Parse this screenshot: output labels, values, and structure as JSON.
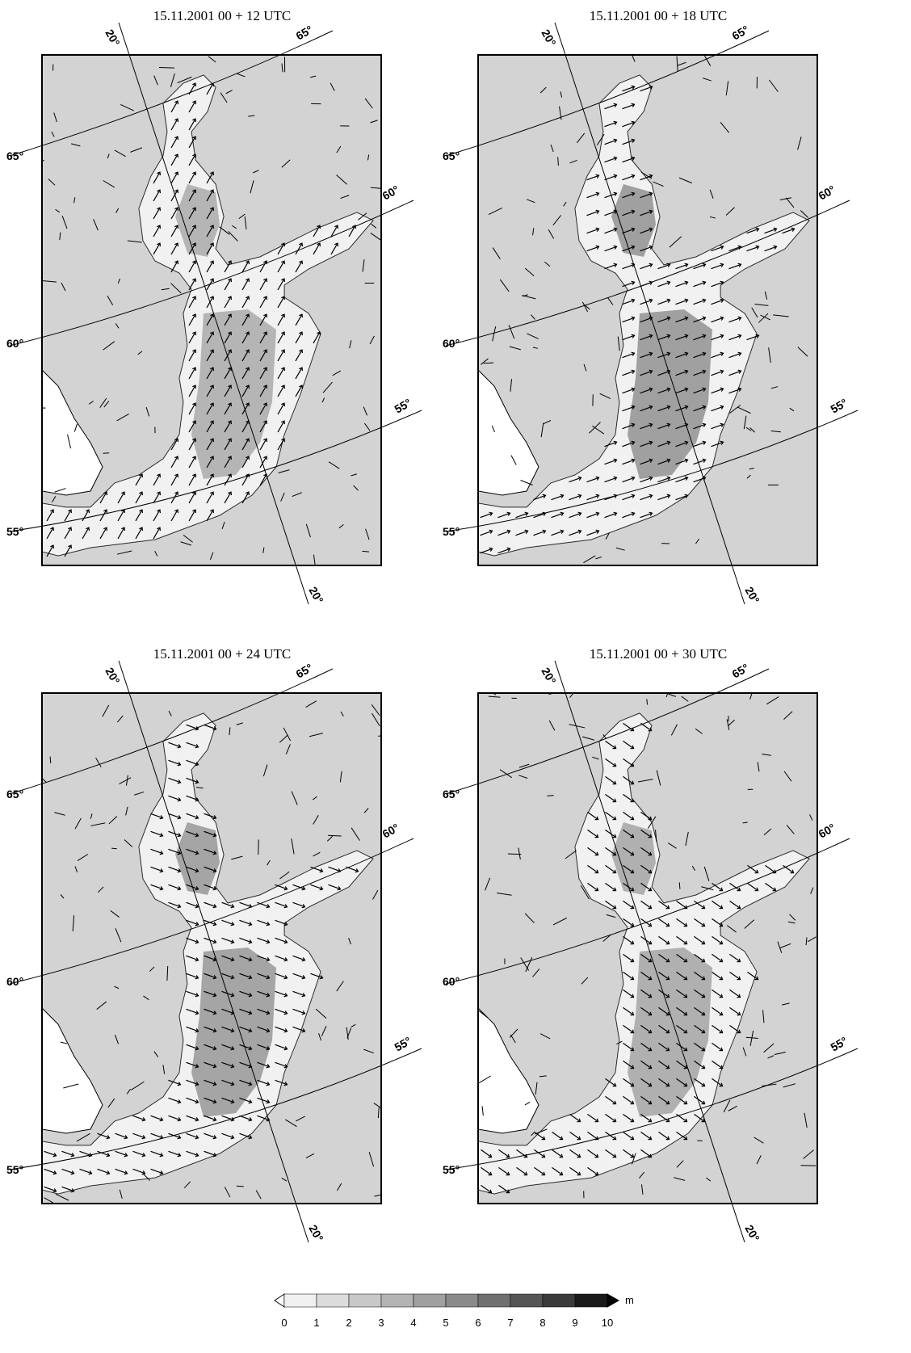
{
  "panels": [
    {
      "title": "15.11.2001 00 + 12 UTC",
      "arrow_angle": -60,
      "intensity": 0.55
    },
    {
      "title": "15.11.2001 00 + 18 UTC",
      "arrow_angle": -20,
      "intensity": 0.75
    },
    {
      "title": "15.11.2001 00 + 24 UTC",
      "arrow_angle": 20,
      "intensity": 0.7
    },
    {
      "title": "15.11.2001 00 + 30 UTC",
      "arrow_angle": 35,
      "intensity": 0.6
    }
  ],
  "map_labels": {
    "lat65": "65°",
    "lat60": "60°",
    "lat55": "55°",
    "lon20": "20°"
  },
  "colorbar": {
    "unit": "m",
    "ticks": [
      "0",
      "1",
      "2",
      "3",
      "4",
      "5",
      "6",
      "7",
      "8",
      "9",
      "10"
    ],
    "colors": [
      "#ffffff",
      "#f0f0f0",
      "#dcdcdc",
      "#c8c8c8",
      "#b4b4b4",
      "#a0a0a0",
      "#8a8a8a",
      "#707070",
      "#555555",
      "#3a3a3a",
      "#1a1a1a"
    ]
  },
  "colors": {
    "land": "#d3d3d3",
    "frame": "#000000"
  }
}
